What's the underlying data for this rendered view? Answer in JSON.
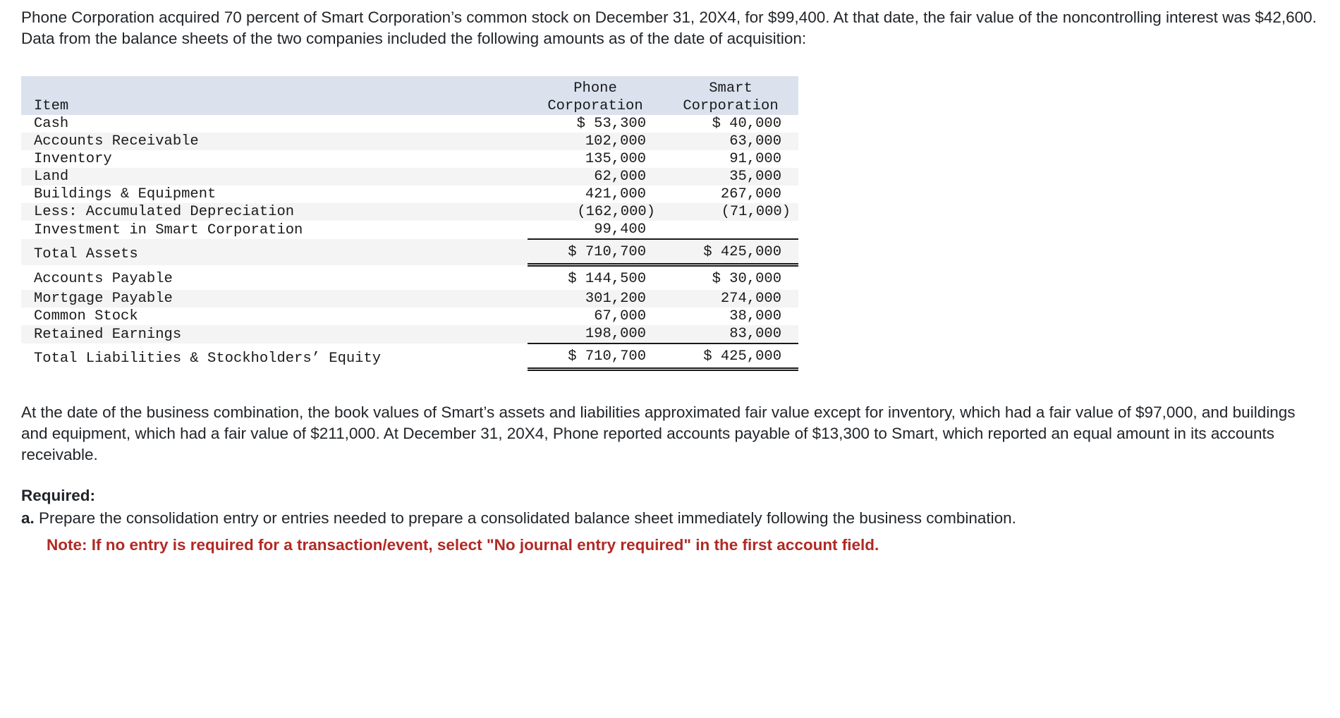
{
  "colors": {
    "header_bg": "#dbe2ee",
    "shade_bg": "#f4f4f5",
    "note_red": "#b02a25"
  },
  "page": {
    "intro": "Phone Corporation acquired 70 percent of Smart Corporation’s common stock on December 31, 20X4, for $99,400. At that date, the fair value of the noncontrolling interest was $42,600. Data from the balance sheets of the two companies included the following amounts as of the date of acquisition:",
    "body2": "At the date of the business combination, the book values of Smart’s assets and liabilities approximated fair value except for inventory, which had a fair value of $97,000, and buildings and equipment, which had a fair value of $211,000. At December 31, 20X4, Phone reported accounts payable of $13,300 to Smart, which reported an equal amount in its accounts receivable.",
    "required_label": "Required:",
    "req_a_label": "a.",
    "req_a_text": "Prepare the consolidation entry or entries needed to prepare a consolidated balance sheet immediately following the business combination.",
    "note": "Note: If no entry is required for a transaction/event, select \"No journal entry required\" in the first account field."
  },
  "table": {
    "header": {
      "item": "Item",
      "phone_top": "Phone",
      "phone_bottom": "Corporation",
      "smart_top": "Smart",
      "smart_bottom": "Corporation"
    },
    "rows": [
      {
        "item": "Cash",
        "phone": "$ 53,300",
        "smart": "$ 40,000"
      },
      {
        "item": "Accounts Receivable",
        "phone": "102,000",
        "smart": "63,000"
      },
      {
        "item": "Inventory",
        "phone": "135,000",
        "smart": "91,000"
      },
      {
        "item": "Land",
        "phone": "62,000",
        "smart": "35,000"
      },
      {
        "item": "Buildings & Equipment",
        "phone": "421,000",
        "smart": "267,000"
      },
      {
        "item": "Less: Accumulated Depreciation",
        "phone": "(162,000)",
        "smart": "(71,000)"
      },
      {
        "item": "Investment in Smart Corporation",
        "phone": "99,400",
        "smart": ""
      },
      {
        "item": "Total Assets",
        "phone": "$ 710,700",
        "smart": "$ 425,000"
      },
      {
        "item": "Accounts Payable",
        "phone": "$ 144,500",
        "smart": "$ 30,000"
      },
      {
        "item": "Mortgage Payable",
        "phone": "301,200",
        "smart": "274,000"
      },
      {
        "item": "Common Stock",
        "phone": "67,000",
        "smart": "38,000"
      },
      {
        "item": "Retained Earnings",
        "phone": "198,000",
        "smart": "83,000"
      },
      {
        "item": "Total Liabilities & Stockholders’ Equity",
        "phone": "$ 710,700",
        "smart": "$ 425,000"
      }
    ]
  }
}
